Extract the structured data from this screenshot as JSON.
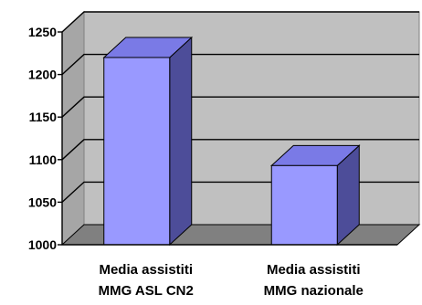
{
  "chart_data": {
    "type": "bar",
    "style": "3d",
    "categories": [
      "Media assistiti MMG ASL CN2",
      "Media assistiti MMG nazionale"
    ],
    "category_lines": [
      [
        "Media assistiti",
        "MMG ASL CN2"
      ],
      [
        "Media assistiti",
        "MMG nazionale"
      ]
    ],
    "values": [
      1220,
      1093
    ],
    "ylim": [
      1000,
      1250
    ],
    "yticks": [
      "1000",
      "1050",
      "1100",
      "1150",
      "1200",
      "1250"
    ],
    "grid": true,
    "legend": "none",
    "colors": {
      "bar_front": "#9999ff",
      "bar_top": "#7a7ae6",
      "bar_side": "#4d4d99",
      "back_wall": "#c0c0c0",
      "floor": "#808080"
    }
  }
}
